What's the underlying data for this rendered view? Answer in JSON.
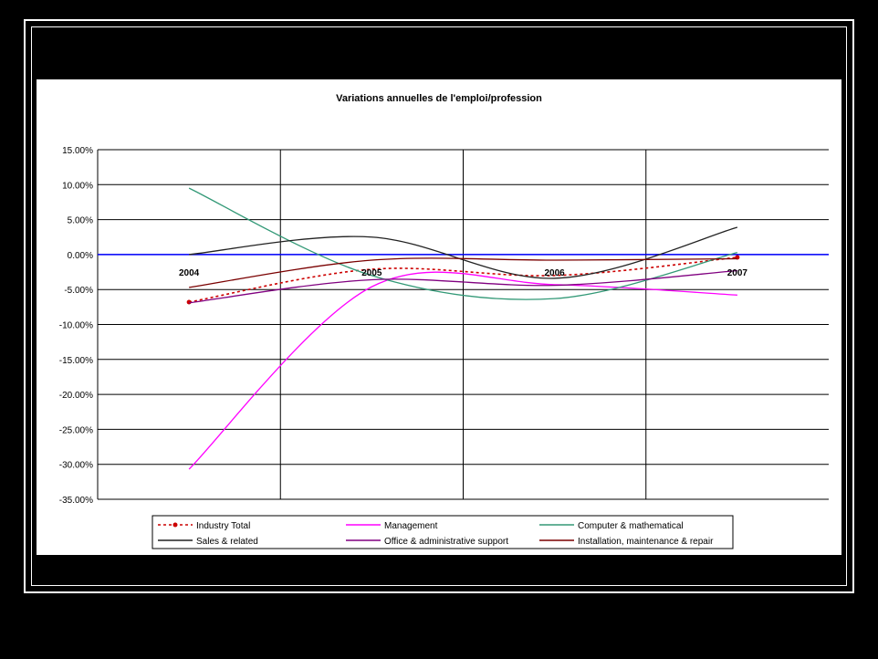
{
  "chart_data": {
    "type": "line",
    "title": "Variations annuelles de l'emploi/profession",
    "xlabel": "",
    "ylabel": "",
    "categories": [
      "2004",
      "2005",
      "2006",
      "2007"
    ],
    "ylim": [
      -0.35,
      0.15
    ],
    "ytick_step": 0.05,
    "ytick_labels": [
      "15.00%",
      "10.00%",
      "5.00%",
      "0.00%",
      "-5.00%",
      "-10.00%",
      "-15.00%",
      "-20.00%",
      "-25.00%",
      "-30.00%",
      "-35.00%"
    ],
    "grid": true,
    "legend_position": "bottom",
    "series": [
      {
        "name": "Industry Total",
        "values": [
          -0.068,
          -0.021,
          -0.03,
          -0.004
        ],
        "color": "#cc0000",
        "style": "dotted-markers"
      },
      {
        "name": "Management",
        "values": [
          -0.307,
          -0.046,
          -0.043,
          -0.058
        ],
        "color": "#ff00ff",
        "style": "solid"
      },
      {
        "name": "Computer & mathematical",
        "values": [
          0.095,
          -0.03,
          -0.063,
          0.003
        ],
        "color": "#339977",
        "style": "solid"
      },
      {
        "name": "Sales & related",
        "values": [
          0.0,
          0.025,
          -0.034,
          0.039
        ],
        "color": "#222222",
        "style": "solid"
      },
      {
        "name": "Office & administrative support",
        "values": [
          -0.069,
          -0.036,
          -0.044,
          -0.023
        ],
        "color": "#800080",
        "style": "solid"
      },
      {
        "name": "Installation, maintenance & repair",
        "values": [
          -0.047,
          -0.008,
          -0.008,
          -0.006
        ],
        "color": "#7a0000",
        "style": "solid"
      }
    ]
  }
}
